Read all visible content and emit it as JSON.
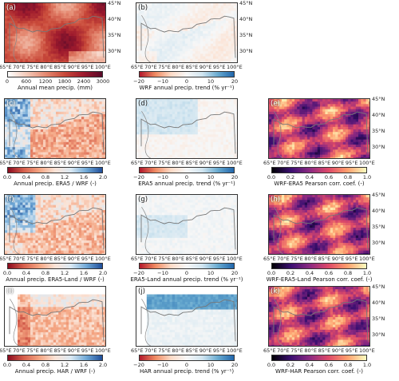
{
  "panels": [
    {
      "id": "a",
      "label": "(a)",
      "cbar": "precip",
      "ticks": [
        "0",
        "600",
        "1200",
        "1800",
        "2400",
        "3000"
      ],
      "title": "Annual mean precip. (mm)",
      "lon": true,
      "lat": true
    },
    {
      "id": "b",
      "label": "(b)",
      "cbar": "trend",
      "ticks": [
        "−20",
        "−10",
        "0",
        "10",
        "20"
      ],
      "title": "WRF annual precip. trend  (% yr⁻¹)",
      "lon": true,
      "lat": true
    },
    {
      "id": "c",
      "label": "(c)",
      "cbar": "ratio",
      "ticks": [
        "0.0",
        "0.4",
        "0.8",
        "1.2",
        "1.6",
        "2.0"
      ],
      "title": "Annual precip. ERA5 / WRF (-)",
      "lon": true,
      "lat": false
    },
    {
      "id": "d",
      "label": "(d)",
      "cbar": "trend",
      "ticks": [
        "−20",
        "−10",
        "0",
        "10",
        "20"
      ],
      "title": "ERA5  annual precip. trend  (% yr⁻¹)",
      "lon": true,
      "lat": false
    },
    {
      "id": "e",
      "label": "(e)",
      "cbar": "corr",
      "ticks": [
        "0.0",
        "0.2",
        "0.4",
        "0.6",
        "0.8",
        "1.0"
      ],
      "title": "WRF-ERA5 Pearson corr. coef. (-)",
      "lon": true,
      "lat": true
    },
    {
      "id": "f",
      "label": "(f)",
      "cbar": "ratio",
      "ticks": [
        "0.0",
        "0.4",
        "0.8",
        "1.2",
        "1.6",
        "2.0"
      ],
      "title": "Annual precip. ERA5-Land / WRF (-)",
      "lon": true,
      "lat": false
    },
    {
      "id": "g",
      "label": "(g)",
      "cbar": "trend",
      "ticks": [
        "−20",
        "−10",
        "0",
        "10",
        "20"
      ],
      "title": "ERA5-Land  annual precip. trend  (% yr⁻¹)",
      "lon": true,
      "lat": false
    },
    {
      "id": "h",
      "label": "(h)",
      "cbar": "corr",
      "ticks": [
        "0.0",
        "0.2",
        "0.4",
        "0.6",
        "0.8",
        "1.0"
      ],
      "title": "WRF-ERA5-Land Pearson corr. coef. (-)",
      "lon": true,
      "lat": true
    },
    {
      "id": "i",
      "label": "(i)",
      "cbar": "ratio",
      "ticks": [
        "0.0",
        "0.4",
        "0.8",
        "1.2",
        "1.6",
        "2.0"
      ],
      "title": "Annual precip. HAR / WRF (-)",
      "lon": true,
      "lat": false
    },
    {
      "id": "j",
      "label": "(j)",
      "cbar": "trend",
      "ticks": [
        "−20",
        "−10",
        "0",
        "10",
        "20"
      ],
      "title": "HAR annual precip. trend  (% yr⁻¹)",
      "lon": true,
      "lat": false
    },
    {
      "id": "k",
      "label": "(k)",
      "cbar": "corr",
      "ticks": [
        "0.0",
        "0.2",
        "0.4",
        "0.6",
        "0.8",
        "1.0"
      ],
      "title": "WRF-HAR Pearson corr. coef. (-)",
      "lon": true,
      "lat": true
    }
  ],
  "lon_ticks": [
    "65°E",
    "70°E",
    "75°E",
    "80°E",
    "85°E",
    "90°E",
    "95°E",
    "100°E"
  ],
  "lat_ticks": [
    "45°N",
    "40°N",
    "35°N",
    "30°N"
  ],
  "colormaps": {
    "precip": [
      "#ffffff",
      "#f4c9b8",
      "#e58a72",
      "#c94a3a",
      "#9e1a2d",
      "#5a0a2a"
    ],
    "trend": [
      "#b2182b",
      "#ef8a62",
      "#fddbc7",
      "#f7f7f7",
      "#d1e5f0",
      "#67a9cf",
      "#2166ac"
    ],
    "ratio": [
      "#8b0a1e",
      "#d6604d",
      "#f4a582",
      "#fbe3d6",
      "#dbe9f3",
      "#6fa8d6",
      "#1f4e9a"
    ],
    "corr": [
      "#000004",
      "#3b0f70",
      "#8c2981",
      "#de4968",
      "#fe9f6d",
      "#fcfdbf"
    ]
  }
}
